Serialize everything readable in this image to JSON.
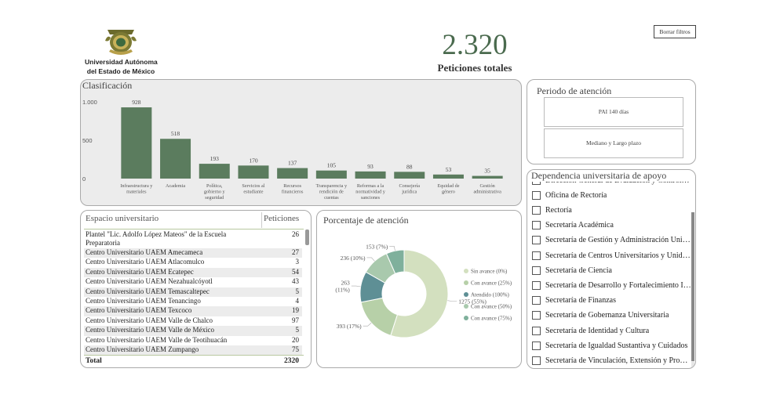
{
  "header": {
    "university_name_line1": "Universidad Autónoma",
    "university_name_line2": "del Estado de México",
    "total_value": "2.320",
    "total_label": "Peticiones totales",
    "clear_filters_label": "Borrar filtros"
  },
  "colors": {
    "bar": "#5b7c5e",
    "panel_gray": "#ececec",
    "title_green": "#4a6a4e",
    "donut_palette": [
      "#d3e0bf",
      "#b7d0a8",
      "#5e8f95",
      "#a9c9ad",
      "#7fb09c"
    ]
  },
  "classification": {
    "title": "Clasificación",
    "chart_data": {
      "type": "bar",
      "ylim": [
        0,
        1000
      ],
      "y_ticks": [
        "1.000",
        "500",
        "0"
      ],
      "y_tick_values": [
        1000,
        500,
        0
      ],
      "categories": [
        [
          "Infraestructura y",
          "materiales"
        ],
        [
          "Academia"
        ],
        [
          "Política,",
          "gobierno y",
          "seguridad"
        ],
        [
          "Servicios al",
          "estudiante"
        ],
        [
          "Recursos",
          "financieros"
        ],
        [
          "Transparencia y",
          "rendición de",
          "cuentas"
        ],
        [
          "Reformas a la",
          "normatividad y",
          "sanciones"
        ],
        [
          "Consejería",
          "jurídica"
        ],
        [
          "Equidad de",
          "género"
        ],
        [
          "Gestión",
          "administrativa"
        ]
      ],
      "values": [
        928,
        518,
        193,
        170,
        137,
        105,
        93,
        88,
        53,
        35
      ],
      "grid": false
    }
  },
  "period": {
    "title": "Periodo de atención",
    "options": [
      "PAI 140 días",
      "Mediano y Largo plazo"
    ]
  },
  "dependency": {
    "title": "Dependencia universitaria de apoyo",
    "items": [
      "Dirección General de Evaluación y Control de la Gestión Universitaria",
      "Oficina de Rectoría",
      "Rectoría",
      "Secretaría Académica",
      "Secretaría de  Gestión y Administración Universitaria",
      "Secretaría de Centros Universitarios y Unidades Académicas",
      "Secretaría de Ciencia",
      "Secretaría de Desarrollo y Fortalecimiento Institucional",
      "Secretaría de Finanzas",
      "Secretaría de Gobernanza Universitaria",
      "Secretaría de Identidad y Cultura",
      "Secretaría de Igualdad Sustantiva y Cuidados",
      "Secretaría de Vinculación, Extensión y Proyectos"
    ]
  },
  "space_table": {
    "col_space": "Espacio universitario",
    "col_requests": "Peticiones",
    "rows": [
      {
        "name": "Plantel \"Lic. Adolfo López Mateos\" de la Escuela Preparatoria",
        "value": "26"
      },
      {
        "name": "Centro Universitario UAEM Amecameca",
        "value": "27"
      },
      {
        "name": "Centro Universitario UAEM Atlacomulco",
        "value": "3"
      },
      {
        "name": "Centro Universitario UAEM Ecatepec",
        "value": "54"
      },
      {
        "name": "Centro Universitario UAEM Nezahualcóyotl",
        "value": "43"
      },
      {
        "name": "Centro Universitario UAEM Temascaltepec",
        "value": "5"
      },
      {
        "name": "Centro Universitario UAEM Tenancingo",
        "value": "4"
      },
      {
        "name": "Centro Universitario UAEM Texcoco",
        "value": "19"
      },
      {
        "name": "Centro Universitario UAEM Valle de Chalco",
        "value": "97"
      },
      {
        "name": "Centro Universitario UAEM Valle de México",
        "value": "5"
      },
      {
        "name": "Centro Universitario UAEM Valle de Teotihuacán",
        "value": "20"
      },
      {
        "name": "Centro Universitario UAEM Zumpango",
        "value": "75"
      }
    ],
    "total_label": "Total",
    "total_value": "2320"
  },
  "attention": {
    "title": "Porcentaje de atención",
    "chart_data": {
      "type": "pie",
      "series": [
        {
          "name": "Sin avance (0%)",
          "value": 1275,
          "label": "1275 (55%)"
        },
        {
          "name": "Con avance (25%)",
          "value": 393,
          "label": "393 (17%)"
        },
        {
          "name": "Atendido (100%)",
          "value": 263,
          "label_lines": [
            "263",
            "(11%)"
          ]
        },
        {
          "name": "Con avance (50%)",
          "value": 236,
          "label": "236 (10%)"
        },
        {
          "name": "Con avance (75%)",
          "value": 153,
          "label": "153 (7%)"
        }
      ]
    }
  }
}
